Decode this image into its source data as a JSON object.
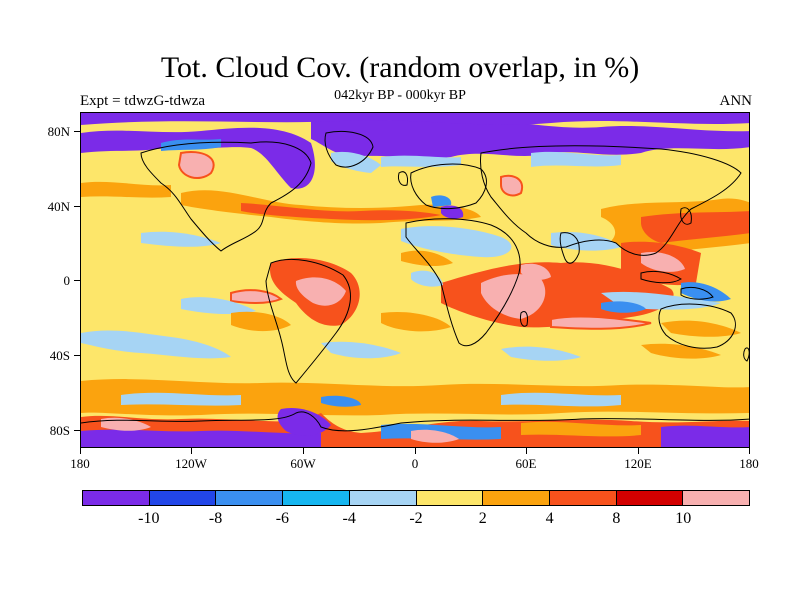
{
  "title": "Tot. Cloud Cov. (random overlap, in %)",
  "subtitle": "042kyr BP - 000kyr BP",
  "left_label": "Expt = tdwzG-tdwza",
  "right_label": "ANN",
  "lat_labels": [
    "80N",
    "40N",
    "0",
    "40S",
    "80S"
  ],
  "lon_labels": [
    "180",
    "120W",
    "60W",
    "0",
    "60E",
    "120E",
    "180"
  ],
  "colorbar": {
    "colors": [
      "#7b2be8",
      "#2246e8",
      "#3a8ff0",
      "#16b6f0",
      "#a6d4f4",
      "#fde66a",
      "#fba30e",
      "#f7521c",
      "#d30000",
      "#f8b0b0"
    ],
    "labels": [
      "-10",
      "-8",
      "-6",
      "-4",
      "-2",
      "2",
      "4",
      "8",
      "10"
    ]
  },
  "map_colors": {
    "background": "#fde66a",
    "ocean_purple": "#7b2be8",
    "blue": "#3a8ff0",
    "light_blue": "#a6d4f4",
    "orange": "#fba30e",
    "red_orange": "#f7521c",
    "red": "#d30000",
    "pink": "#f8b0b0"
  }
}
